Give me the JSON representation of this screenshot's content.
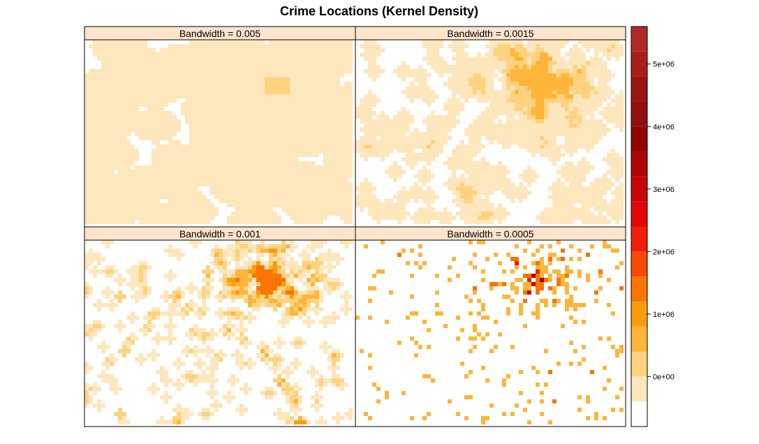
{
  "chart_data": {
    "type": "heatmap",
    "title": "Crime Locations (Kernel Density)",
    "layout": "2x2 panels",
    "panels": [
      {
        "label": "Bandwidth = 0.005"
      },
      {
        "label": "Bandwidth = 0.0015"
      },
      {
        "label": "Bandwidth = 0.001"
      },
      {
        "label": "Bandwidth = 0.0005"
      }
    ],
    "colorkey": {
      "range": [
        -800000,
        5600000
      ],
      "ticks": [
        {
          "value": 0,
          "label": "0e+00"
        },
        {
          "value": 1000000,
          "label": "1e+06"
        },
        {
          "value": 2000000,
          "label": "2e+06"
        },
        {
          "value": 3000000,
          "label": "3e+06"
        },
        {
          "value": 4000000,
          "label": "4e+06"
        },
        {
          "value": 5000000,
          "label": "5e+06"
        }
      ],
      "colors": [
        "#ffffff",
        "#fee6bd",
        "#fed27e",
        "#fdb53a",
        "#fd9b0b",
        "#fb7404",
        "#f84c06",
        "#f11e0a",
        "#e30509",
        "#c70707",
        "#ae0606",
        "#8f0303",
        "#901010",
        "#9a1414",
        "#a81d1d",
        "#b02a2a"
      ]
    },
    "strip_color": "#ffe4cc"
  }
}
